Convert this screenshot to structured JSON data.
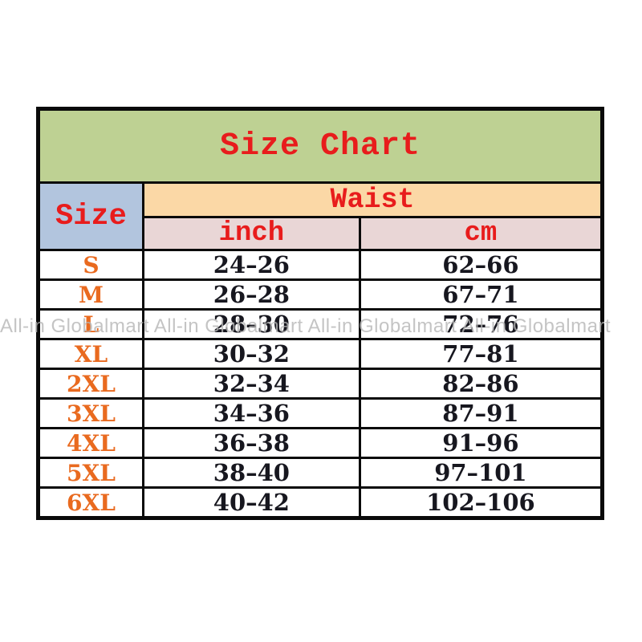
{
  "chart_data": {
    "type": "table",
    "title": "Size Chart",
    "size_column_header": "Size",
    "column_group_header": "Waist",
    "unit_columns": [
      "inch",
      "cm"
    ],
    "rows": [
      {
        "size": "S",
        "inch": "24–26",
        "cm": "62–66"
      },
      {
        "size": "M",
        "inch": "26–28",
        "cm": "67–71"
      },
      {
        "size": "L",
        "inch": "28–30",
        "cm": "72–76"
      },
      {
        "size": "XL",
        "inch": "30–32",
        "cm": "77–81"
      },
      {
        "size": "2XL",
        "inch": "32–34",
        "cm": "82–86"
      },
      {
        "size": "3XL",
        "inch": "34–36",
        "cm": "87–91"
      },
      {
        "size": "4XL",
        "inch": "36–38",
        "cm": "91–96"
      },
      {
        "size": "5XL",
        "inch": "38–40",
        "cm": "97–101"
      },
      {
        "size": "6XL",
        "inch": "40–42",
        "cm": "102–106"
      }
    ]
  },
  "watermark": {
    "text": "All-in Globalmart  All-in Globalmart  All-in Globalmart  All-in Globalmart"
  },
  "colors": {
    "title_bg": "#bed193",
    "size_header_bg": "#b2c5de",
    "waist_header_bg": "#fbd8a6",
    "unit_header_bg": "#e9d6d6",
    "header_text": "#e81c1c",
    "size_label_text": "#e96a1f",
    "value_text": "#17171f",
    "border": "#0a0a0a",
    "watermark_text": "#b6b6b6",
    "page_bg": "#ffffff"
  }
}
